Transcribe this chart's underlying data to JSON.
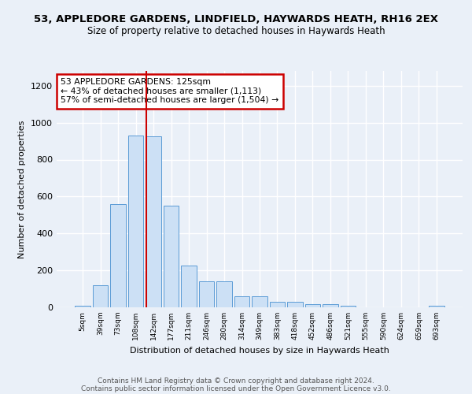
{
  "title1": "53, APPLEDORE GARDENS, LINDFIELD, HAYWARDS HEATH, RH16 2EX",
  "title2": "Size of property relative to detached houses in Haywards Heath",
  "xlabel": "Distribution of detached houses by size in Haywards Heath",
  "ylabel": "Number of detached properties",
  "bar_labels": [
    "5sqm",
    "39sqm",
    "73sqm",
    "108sqm",
    "142sqm",
    "177sqm",
    "211sqm",
    "246sqm",
    "280sqm",
    "314sqm",
    "349sqm",
    "383sqm",
    "418sqm",
    "452sqm",
    "486sqm",
    "521sqm",
    "555sqm",
    "590sqm",
    "624sqm",
    "659sqm",
    "693sqm"
  ],
  "bar_values": [
    8,
    120,
    560,
    930,
    925,
    550,
    225,
    140,
    140,
    60,
    60,
    32,
    32,
    15,
    15,
    8,
    2,
    2,
    2,
    2,
    8
  ],
  "bar_color": "#cce0f5",
  "bar_edge_color": "#5b9bd5",
  "property_line_x": 3.62,
  "annotation_text": "53 APPLEDORE GARDENS: 125sqm\n← 43% of detached houses are smaller (1,113)\n57% of semi-detached houses are larger (1,504) →",
  "annotation_box_color": "#ffffff",
  "annotation_box_edge": "#cc0000",
  "annotation_text_color": "#000000",
  "vline_color": "#cc0000",
  "footer_line1": "Contains HM Land Registry data © Crown copyright and database right 2024.",
  "footer_line2": "Contains public sector information licensed under the Open Government Licence v3.0.",
  "bg_color": "#eaf0f8",
  "plot_bg_color": "#eaf0f8",
  "grid_color": "#ffffff",
  "ylim": [
    0,
    1280
  ],
  "yticks": [
    0,
    200,
    400,
    600,
    800,
    1000,
    1200
  ]
}
